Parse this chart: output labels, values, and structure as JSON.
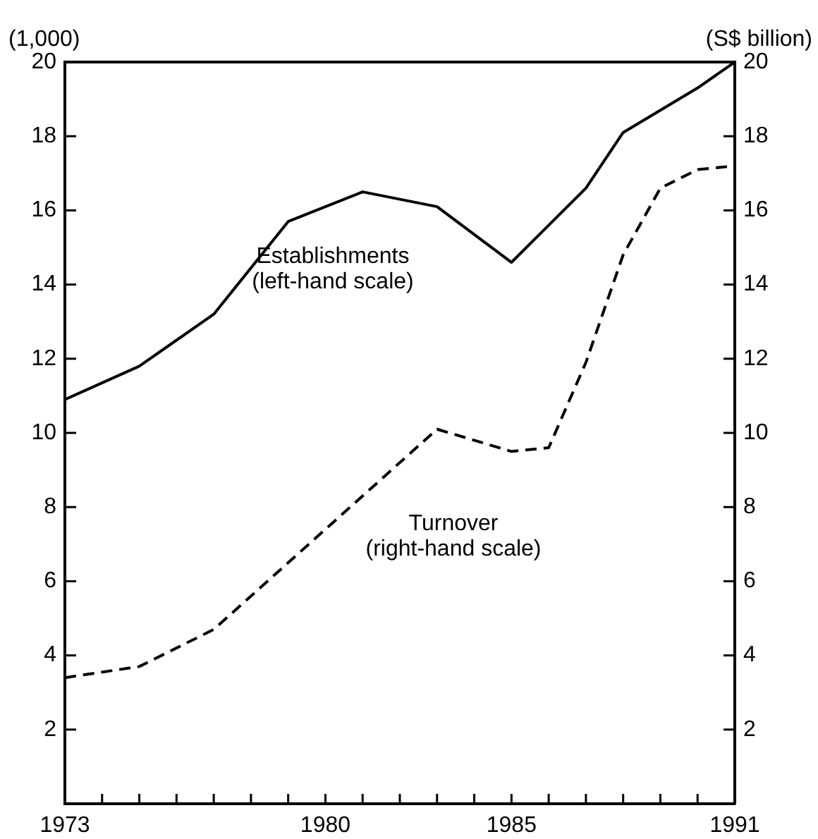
{
  "chart_data": {
    "type": "line",
    "ylabel": "(1,000)",
    "y2label": "(S$ billion)",
    "x": [
      1973,
      1975,
      1977,
      1979,
      1981,
      1983,
      1985,
      1987,
      1988,
      1990,
      1991
    ],
    "series": [
      {
        "name": "Establishments (left-hand scale)",
        "color": "#000000",
        "line_style": "solid",
        "values": [
          10.9,
          11.8,
          13.2,
          15.7,
          16.5,
          16.1,
          14.6,
          16.6,
          18.1,
          19.3,
          20.0
        ]
      },
      {
        "name": "Turnover (right-hand scale)",
        "color": "#000000",
        "line_style": "dashed",
        "axis": "y2",
        "x": [
          1973,
          1975,
          1977,
          1979,
          1981,
          1983,
          1985,
          1986,
          1987,
          1988,
          1989,
          1990,
          1991
        ],
        "values": [
          3.4,
          3.7,
          4.7,
          6.5,
          8.3,
          10.1,
          9.5,
          9.6,
          11.9,
          14.8,
          16.6,
          17.1,
          17.2
        ]
      }
    ],
    "xlim": [
      1973,
      1991
    ],
    "xticks": [
      1973,
      {
        "value": 1974,
        "label": null
      },
      {
        "value": 1975,
        "label": null
      },
      {
        "value": 1976,
        "label": null
      },
      {
        "value": 1977,
        "label": null
      },
      {
        "value": 1978,
        "label": null
      },
      {
        "value": 1979,
        "label": null
      },
      1980,
      {
        "value": 1981,
        "label": null
      },
      {
        "value": 1982,
        "label": null
      },
      {
        "value": 1983,
        "label": null
      },
      {
        "value": 1984,
        "label": null
      },
      1985,
      {
        "value": 1986,
        "label": null
      },
      {
        "value": 1987,
        "label": null
      },
      {
        "value": 1988,
        "label": null
      },
      {
        "value": 1989,
        "label": null
      },
      {
        "value": 1990,
        "label": null
      },
      1991
    ],
    "ylim": [
      0,
      20
    ],
    "yticks": [
      2,
      4,
      6,
      8,
      10,
      12,
      14,
      16,
      18,
      20
    ],
    "y2lim": [
      0,
      20
    ],
    "y2ticks": [
      2,
      4,
      6,
      8,
      10,
      12,
      14,
      16,
      18,
      20
    ],
    "legend": false,
    "grid": false,
    "marker": "none"
  }
}
